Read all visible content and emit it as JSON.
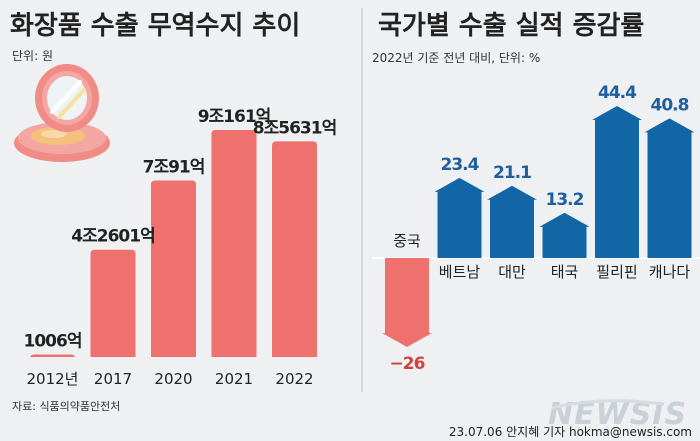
{
  "left": {
    "title": "화장품 수출 무역수지 추이",
    "unit": "단위: 원"
  },
  "right": {
    "title": "국가별 수출 실적 증감률",
    "unit": "2022년 기준 전년 대비, 단위: %"
  },
  "source": "자료: 식품의약품안전처",
  "credit": "23.07.06 안지혜 기자 hokma@newsis.com",
  "watermark": "NEWSIS",
  "colors": {
    "red_bar": "#ef716d",
    "red_bar_light": "#f39591",
    "blue_bar": "#1366a6",
    "label_blue": "#1f5fa0",
    "label_red": "#d0423f",
    "icon": "compact-powder-icon"
  },
  "chart_data": [
    {
      "type": "bar",
      "categories": [
        "2012년",
        "2017",
        "2020",
        "2021",
        "2022"
      ],
      "values": [
        1006,
        42601,
        70091,
        90161,
        85631
      ],
      "value_labels": [
        "1006억",
        "4조2601억",
        "7조91억",
        "9조161억",
        "8조5631억"
      ],
      "ylim": [
        0,
        90161
      ],
      "grid": false,
      "legend": "none"
    },
    {
      "type": "bar",
      "categories": [
        "중국",
        "베트남",
        "대만",
        "태국",
        "필리핀",
        "캐나다"
      ],
      "values": [
        -26,
        23.4,
        21.1,
        13.2,
        44.4,
        40.8
      ],
      "value_labels": [
        "−26",
        "23.4",
        "21.1",
        "13.2",
        "44.4",
        "40.8"
      ],
      "ylim": [
        -26,
        44.4
      ],
      "grid": false,
      "legend": "none"
    }
  ]
}
